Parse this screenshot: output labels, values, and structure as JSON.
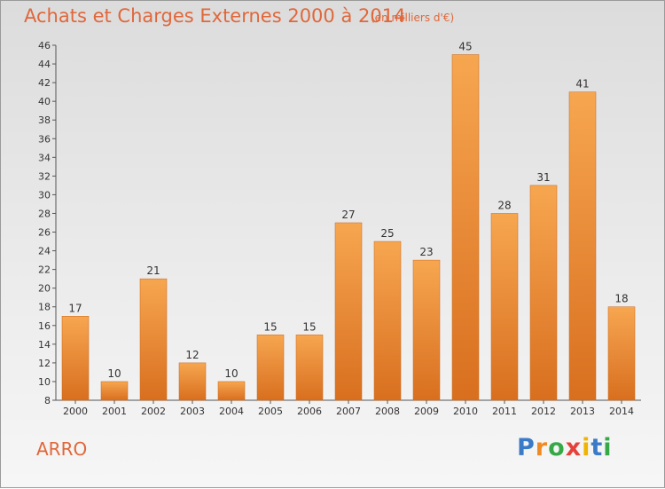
{
  "title": "Achats et Charges Externes 2000 à 2014",
  "subtitle": "(en milliers d'€)",
  "place": "ARRO",
  "logo": {
    "text": "Proxiti",
    "letter_colors": [
      "#3b7ac7",
      "#f08a24",
      "#36a947",
      "#e6403a",
      "#f0b400",
      "#3b7ac7",
      "#36a947"
    ]
  },
  "colors": {
    "bar_top": "#f7a650",
    "bar_bottom": "#d86f1f",
    "text": "#e0673a",
    "axis_text": "#333333"
  },
  "chart_data": {
    "type": "bar",
    "categories": [
      "2000",
      "2001",
      "2002",
      "2003",
      "2004",
      "2005",
      "2006",
      "2007",
      "2008",
      "2009",
      "2010",
      "2011",
      "2012",
      "2013",
      "2014"
    ],
    "values": [
      17,
      10,
      21,
      12,
      10,
      15,
      15,
      27,
      25,
      23,
      45,
      28,
      31,
      41,
      18
    ],
    "title": "Achats et Charges Externes 2000 à 2014",
    "subtitle": "(en milliers d'€)",
    "xlabel": "",
    "ylabel": "",
    "ylim": [
      8,
      46
    ],
    "yticks": [
      8,
      10,
      12,
      14,
      16,
      18,
      20,
      22,
      24,
      26,
      28,
      30,
      32,
      34,
      36,
      38,
      40,
      42,
      44,
      46
    ],
    "grid": false,
    "legend": "none"
  }
}
